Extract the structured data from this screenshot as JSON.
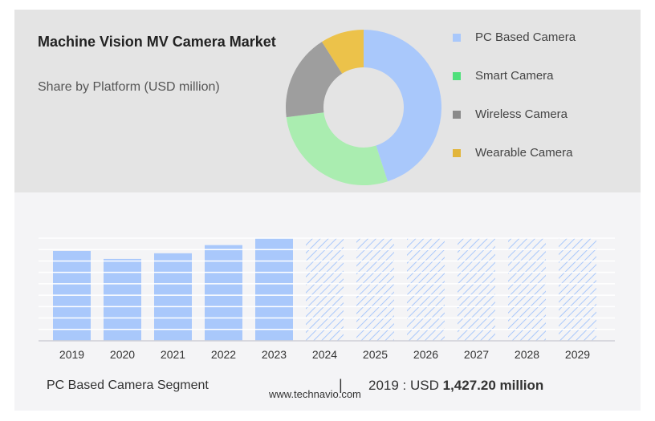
{
  "header": {
    "title": "Machine Vision MV Camera Market",
    "subtitle": "Share by Platform (USD million)"
  },
  "colors": {
    "pc_based": "#a9c8fb",
    "smart": "#aaedb0",
    "wireless": "#9e9e9e",
    "wearable": "#ecc24a",
    "grid": "#ffffff",
    "hatch": "#a9c8fb"
  },
  "donut": {
    "segments": [
      {
        "name": "PC Based Camera",
        "value": 45,
        "color": "#a9c8fb"
      },
      {
        "name": "Smart Camera",
        "value": 28,
        "color": "#aaedb0"
      },
      {
        "name": "Wireless Camera",
        "value": 18,
        "color": "#9e9e9e"
      },
      {
        "name": "Wearable Camera",
        "value": 9,
        "color": "#ecc24a"
      }
    ]
  },
  "legend": {
    "items": [
      {
        "label": "PC Based Camera",
        "color": "#a9c8fb"
      },
      {
        "label": "Smart Camera",
        "color": "#4fe07b"
      },
      {
        "label": "Wireless Camera",
        "color": "#8a8a8a"
      },
      {
        "label": "Wearable Camera",
        "color": "#e2b53a"
      }
    ]
  },
  "chart_data": {
    "type": "bar",
    "categories": [
      "2019",
      "2020",
      "2021",
      "2022",
      "2023",
      "2024",
      "2025",
      "2026",
      "2027",
      "2028",
      "2029"
    ],
    "values": [
      1427.2,
      1300,
      1390,
      1520,
      1630,
      null,
      null,
      null,
      null,
      null,
      null
    ],
    "forecast_from": "2024",
    "ylim": [
      0,
      1630
    ],
    "grid": true,
    "axis_labels": false
  },
  "footer": {
    "segment_label": "PC Based Camera Segment",
    "divider": "|",
    "year_prefix": "2019 : USD ",
    "value": "1,427.20 million",
    "source": "www.technavio.com"
  }
}
